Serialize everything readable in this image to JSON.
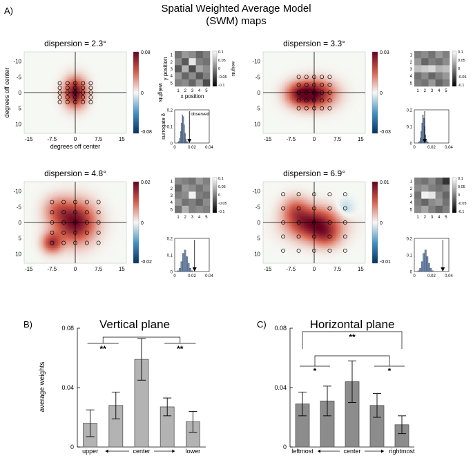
{
  "figure": {
    "panel_a_label": "A)",
    "title_line1": "Spatial Weighted Average Model",
    "title_line2": "(SWM) maps"
  },
  "maps": [
    {
      "title": "dispersion = 2.3°",
      "colorbar_ticks": [
        "0.08",
        "0",
        "-0.08"
      ],
      "colorbar_label": "weights",
      "ylabel": "degrees off center",
      "xlabel": "degrees off center",
      "x_ticks": [
        "-15",
        "-7.5",
        "0",
        "7.5",
        "15"
      ],
      "y_ticks": [
        "-10",
        "-5",
        "0",
        "5",
        "10"
      ],
      "grid_cols": [
        -5,
        -2.5,
        0,
        2.5,
        5
      ],
      "grid_rows": [
        -3,
        -1.5,
        0,
        1.5,
        3
      ],
      "blobs": [
        {
          "x": 0,
          "y": 0,
          "sx": 2.5,
          "sy": 3.2,
          "w": 1.0
        }
      ],
      "inset": {
        "ylabel": "y position",
        "xlabel": "x position",
        "cbar_label": "weights",
        "x_ticks": [
          "1",
          "2",
          "3",
          "4",
          "5"
        ],
        "y_ticks": [
          "1",
          "2",
          "3",
          "4",
          "5"
        ],
        "cbar_ticks": [
          "0.1",
          "0.05",
          "0",
          "-0.05",
          "-0.1"
        ],
        "grid": [
          [
            0.45,
            0.6,
            0.55,
            0.4,
            0.5
          ],
          [
            0.55,
            0.35,
            0.9,
            0.5,
            0.45
          ],
          [
            0.35,
            0.7,
            0.3,
            0.65,
            0.55
          ],
          [
            0.6,
            0.4,
            0.55,
            0.35,
            0.5
          ],
          [
            0.5,
            0.55,
            0.4,
            0.6,
            0.3
          ]
        ]
      },
      "hist": {
        "ylabel": "surrogate δ",
        "x_ticks": [
          "0",
          "0.02",
          "0.04"
        ],
        "y_ticks": [
          "0.2",
          "0.1",
          "0"
        ],
        "xlim": [
          0,
          0.04
        ],
        "ylim": [
          0,
          0.2
        ],
        "bins": [
          0.004,
          0.005,
          0.006,
          0.007,
          0.008,
          0.009,
          0.01,
          0.011,
          0.012,
          0.013,
          0.014,
          0.015
        ],
        "freqs": [
          0.005,
          0.012,
          0.03,
          0.07,
          0.12,
          0.17,
          0.16,
          0.11,
          0.06,
          0.025,
          0.01,
          0.004
        ],
        "observed": 0.017,
        "observed_label": "observed"
      }
    },
    {
      "title": "dispersion = 3.3°",
      "colorbar_ticks": [
        "0.03",
        "0",
        "-0.03"
      ],
      "x_ticks": [
        "-15",
        "-7.5",
        "0",
        "7.5",
        "15"
      ],
      "y_ticks": [
        "-10",
        "-5",
        "0",
        "5",
        "10"
      ],
      "grid_cols": [
        -5,
        -2.5,
        0,
        2.5,
        5
      ],
      "grid_rows": [
        -5,
        -2.5,
        0,
        2.5,
        5
      ],
      "blobs": [
        {
          "x": 0,
          "y": 0.5,
          "sx": 4.5,
          "sy": 3.0,
          "w": 1.0
        },
        {
          "x": -5,
          "y": 0.5,
          "sx": 3,
          "sy": 2.5,
          "w": 0.5
        }
      ],
      "inset": {
        "x_ticks": [
          "1",
          "2",
          "3",
          "4",
          "5"
        ],
        "y_ticks": [
          "1",
          "2",
          "3",
          "4",
          "5"
        ],
        "cbar_ticks": [
          "0.1",
          "0.05",
          "0",
          "-0.05",
          "-0.1"
        ],
        "grid": [
          [
            0.5,
            0.55,
            0.45,
            0.6,
            0.5
          ],
          [
            0.6,
            0.4,
            0.5,
            0.45,
            0.55
          ],
          [
            0.75,
            0.8,
            0.85,
            0.7,
            0.75
          ],
          [
            0.45,
            0.55,
            0.4,
            0.5,
            0.6
          ],
          [
            0.5,
            0.45,
            0.6,
            0.4,
            0.5
          ]
        ]
      },
      "hist": {
        "x_ticks": [
          "0",
          "0.02",
          "0.04"
        ],
        "y_ticks": [
          "0.2",
          "0.1",
          "0"
        ],
        "xlim": [
          0,
          0.04
        ],
        "ylim": [
          0,
          0.2
        ],
        "bins": [
          0.005,
          0.006,
          0.007,
          0.008,
          0.009,
          0.01,
          0.011,
          0.012,
          0.013,
          0.014,
          0.015,
          0.016
        ],
        "freqs": [
          0.004,
          0.01,
          0.03,
          0.07,
          0.12,
          0.17,
          0.15,
          0.1,
          0.05,
          0.02,
          0.008,
          0.003
        ],
        "observed": 0.012
      }
    },
    {
      "title": "dispersion = 4.8°",
      "colorbar_ticks": [
        "0.02",
        "0",
        "-0.02"
      ],
      "x_ticks": [
        "-15",
        "-7.5",
        "0",
        "7.5",
        "15"
      ],
      "y_ticks": [
        "-10",
        "-5",
        "0",
        "5",
        "10"
      ],
      "grid_cols": [
        -7.5,
        -3.75,
        0,
        3.75,
        7.5
      ],
      "grid_rows": [
        -6.5,
        -3.25,
        0,
        3.25,
        6.5
      ],
      "blobs": [
        {
          "x": 0,
          "y": 0,
          "sx": 4.5,
          "sy": 4.5,
          "w": 1.0
        },
        {
          "x": -7.5,
          "y": 6.5,
          "sx": 2.2,
          "sy": 2.2,
          "w": 0.7
        },
        {
          "x": -6,
          "y": -4,
          "sx": 3,
          "sy": 3,
          "w": 0.35
        }
      ],
      "inset": {
        "x_ticks": [
          "1",
          "2",
          "3",
          "4",
          "5"
        ],
        "y_ticks": [
          "1",
          "2",
          "3",
          "4",
          "5"
        ],
        "cbar_ticks": [
          "0.1",
          "0.05",
          "0",
          "-0.05",
          "-0.1"
        ],
        "grid": [
          [
            0.55,
            0.5,
            0.45,
            0.6,
            0.5
          ],
          [
            0.4,
            0.6,
            0.55,
            0.45,
            0.55
          ],
          [
            0.5,
            0.55,
            0.95,
            0.5,
            0.45
          ],
          [
            0.6,
            0.45,
            0.5,
            0.4,
            0.55
          ],
          [
            0.45,
            0.7,
            0.5,
            0.55,
            0.5
          ]
        ]
      },
      "hist": {
        "x_ticks": [
          "0",
          "0.02",
          "0.04"
        ],
        "y_ticks": [
          "0.2",
          "0.1",
          "0"
        ],
        "xlim": [
          0,
          0.04
        ],
        "ylim": [
          0,
          0.2
        ],
        "bins": [
          0.004,
          0.006,
          0.008,
          0.01,
          0.012,
          0.014,
          0.016,
          0.018,
          0.02
        ],
        "freqs": [
          0.005,
          0.02,
          0.06,
          0.11,
          0.13,
          0.09,
          0.05,
          0.02,
          0.005
        ],
        "observed": 0.023
      }
    },
    {
      "title": "dispersion = 6.9°",
      "colorbar_ticks": [
        "0.01",
        "0",
        "-0.01"
      ],
      "x_ticks": [
        "-15",
        "-7.5",
        "0",
        "7.5",
        "15"
      ],
      "y_ticks": [
        "-10",
        "-5",
        "0",
        "5",
        "10"
      ],
      "grid_cols": [
        -10,
        -5,
        0,
        5,
        10
      ],
      "grid_rows": [
        -9,
        -4.5,
        0,
        4.5,
        9
      ],
      "blobs": [
        {
          "x": 0,
          "y": 0.5,
          "sx": 5.5,
          "sy": 3.5,
          "w": 1.0
        },
        {
          "x": -6,
          "y": -4,
          "sx": 3,
          "sy": 3,
          "w": 0.45
        },
        {
          "x": 4,
          "y": 4.5,
          "sx": 3,
          "sy": 2.5,
          "w": 0.4
        },
        {
          "x": 10,
          "y": -4.5,
          "sx": 2,
          "sy": 2,
          "w": -0.2
        }
      ],
      "inset": {
        "x_ticks": [
          "1",
          "2",
          "3",
          "4",
          "5"
        ],
        "y_ticks": [
          "1",
          "2",
          "3",
          "4",
          "5"
        ],
        "cbar_ticks": [
          "0.1",
          "0.05",
          "0",
          "-0.05",
          "-0.1"
        ],
        "grid": [
          [
            0.5,
            0.45,
            0.55,
            0.4,
            0.2
          ],
          [
            0.55,
            0.6,
            0.5,
            0.45,
            0.5
          ],
          [
            0.45,
            0.95,
            0.9,
            0.55,
            0.4
          ],
          [
            0.5,
            0.4,
            0.55,
            0.6,
            0.45
          ],
          [
            0.55,
            0.65,
            0.5,
            0.4,
            0.5
          ]
        ]
      },
      "hist": {
        "x_ticks": [
          "0",
          "0.02",
          "0.04"
        ],
        "y_ticks": [
          "0.2",
          "0.1",
          "0"
        ],
        "xlim": [
          0,
          0.04
        ],
        "ylim": [
          0,
          0.2
        ],
        "bins": [
          0.005,
          0.007,
          0.009,
          0.011,
          0.013,
          0.015,
          0.017,
          0.019,
          0.021
        ],
        "freqs": [
          0.005,
          0.02,
          0.06,
          0.11,
          0.13,
          0.09,
          0.05,
          0.02,
          0.005
        ],
        "observed": 0.033
      }
    }
  ],
  "chart_data": [
    {
      "type": "bar",
      "panel_label": "B)",
      "title": "Vertical plane",
      "ylabel": "average weights",
      "ylim": [
        0,
        0.08
      ],
      "y_ticks": [
        "0.08",
        "0.04",
        "0"
      ],
      "x_axis_labels": {
        "left": "upper",
        "center": "center",
        "right": "lower"
      },
      "categories": [
        "1",
        "2",
        "3",
        "4",
        "5"
      ],
      "values": [
        0.016,
        0.028,
        0.059,
        0.027,
        0.017
      ],
      "errors": [
        0.009,
        0.009,
        0.014,
        0.006,
        0.007
      ],
      "significance": [
        {
          "from": 0,
          "to": 1,
          "label": "**"
        },
        {
          "from": 3,
          "to": 4,
          "label": "**"
        }
      ],
      "bar_color": "#b3b3b3"
    },
    {
      "type": "bar",
      "panel_label": "C)",
      "title": "Horizontal plane",
      "ylim": [
        0,
        0.08
      ],
      "y_ticks": [
        "0.08",
        "0.04",
        "0"
      ],
      "x_axis_labels": {
        "left": "leftmost",
        "center": "center",
        "right": "rightmost"
      },
      "categories": [
        "1",
        "2",
        "3",
        "4",
        "5"
      ],
      "values": [
        0.029,
        0.031,
        0.044,
        0.028,
        0.015
      ],
      "errors": [
        0.008,
        0.01,
        0.014,
        0.008,
        0.006
      ],
      "significance": [
        {
          "from": 0,
          "to": 1,
          "label": "*"
        },
        {
          "from": 3,
          "to": 4,
          "label": "*"
        },
        {
          "from": 0,
          "to": 4,
          "label": "**"
        }
      ],
      "bar_color": "#8c8c8c"
    }
  ]
}
